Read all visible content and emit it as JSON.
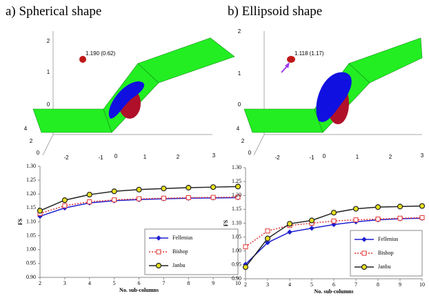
{
  "scenes": [
    {
      "title": "a) Spherical shape",
      "annotation": "1.190 (0.62)",
      "zticks": [
        "2",
        "1",
        "0"
      ],
      "yticks": [
        "4",
        "2",
        "0"
      ],
      "xticks": [
        "-2",
        "-1",
        "0",
        "1",
        "2",
        "3"
      ]
    },
    {
      "title": "b) Ellipsoid shape",
      "annotation": "1.118 (1.17)",
      "zticks": [
        "2",
        "1",
        "0"
      ],
      "yticks": [
        "4",
        "2",
        "0"
      ],
      "xticks": [
        "-2",
        "-1",
        "0",
        "1",
        "2",
        "3"
      ]
    }
  ],
  "chart_data": [
    {
      "type": "line",
      "xlabel": "No. sub-columns",
      "ylabel": "FS",
      "x": [
        2,
        3,
        4,
        5,
        6,
        7,
        8,
        9,
        10
      ],
      "xlim": [
        2,
        10
      ],
      "xticks": [
        2,
        3,
        4,
        5,
        6,
        7,
        8,
        9,
        10
      ],
      "ylim": [
        0.9,
        1.3
      ],
      "yticks": [
        {
          "value": 0.9,
          "label": "0.90"
        },
        {
          "value": 0.95,
          "label": "0.95"
        },
        {
          "value": 1.0,
          "label": "1.00"
        },
        {
          "value": 1.05,
          "label": "1.05"
        },
        {
          "value": 1.1,
          "label": "1.10"
        },
        {
          "value": 1.15,
          "label": "1.15"
        },
        {
          "value": 1.2,
          "label": "1.20"
        },
        {
          "value": 1.25,
          "label": "1.25"
        },
        {
          "value": 1.3,
          "label": "1.30"
        }
      ],
      "legend": "lower right",
      "series": [
        {
          "name": "Fellenius",
          "color": "#1f1fd0",
          "marker": "diamond",
          "line_style": "solid",
          "values": [
            1.12,
            1.15,
            1.168,
            1.176,
            1.18,
            1.183,
            1.185,
            1.186,
            1.187
          ]
        },
        {
          "name": "Bishop",
          "color": "#e03030",
          "marker": "square",
          "line_style": "dotted",
          "values": [
            1.13,
            1.158,
            1.172,
            1.179,
            1.183,
            1.185,
            1.187,
            1.188,
            1.189
          ]
        },
        {
          "name": "Janbu",
          "color": "#222222",
          "marker": "circle",
          "marker_fill": "#e8e020",
          "line_style": "solid",
          "values": [
            1.14,
            1.178,
            1.198,
            1.21,
            1.216,
            1.22,
            1.223,
            1.225,
            1.227
          ]
        }
      ]
    },
    {
      "type": "line",
      "xlabel": "No. sub-columns",
      "ylabel": "FS",
      "x": [
        2,
        3,
        4,
        5,
        6,
        7,
        8,
        9,
        10
      ],
      "xlim": [
        2,
        10
      ],
      "xticks": [
        2,
        3,
        4,
        5,
        6,
        7,
        8,
        9,
        10
      ],
      "ylim": [
        0.9,
        1.3
      ],
      "yticks": [
        {
          "value": 0.9,
          "label": "0.90"
        },
        {
          "value": 0.95,
          "label": "0.95"
        },
        {
          "value": 1.0,
          "label": "1.00"
        },
        {
          "value": 1.05,
          "label": "1.05"
        },
        {
          "value": 1.1,
          "label": "1.10"
        },
        {
          "value": 1.15,
          "label": "1.15"
        },
        {
          "value": 1.2,
          "label": "1.20"
        },
        {
          "value": 1.25,
          "label": "1.25"
        },
        {
          "value": 1.3,
          "label": "1.30"
        }
      ],
      "legend": "lower right",
      "series": [
        {
          "name": "Fellenius",
          "color": "#1f1fd0",
          "marker": "diamond",
          "line_style": "solid",
          "values": [
            0.952,
            1.03,
            1.068,
            1.082,
            1.095,
            1.105,
            1.112,
            1.116,
            1.118
          ]
        },
        {
          "name": "Bishop",
          "color": "#e03030",
          "marker": "square",
          "line_style": "dotted",
          "values": [
            1.015,
            1.072,
            1.092,
            1.1,
            1.108,
            1.112,
            1.115,
            1.118,
            1.12
          ]
        },
        {
          "name": "Janbu",
          "color": "#222222",
          "marker": "circle",
          "marker_fill": "#e8e020",
          "line_style": "solid",
          "values": [
            0.942,
            1.045,
            1.098,
            1.11,
            1.138,
            1.152,
            1.158,
            1.16,
            1.162
          ]
        }
      ]
    }
  ]
}
